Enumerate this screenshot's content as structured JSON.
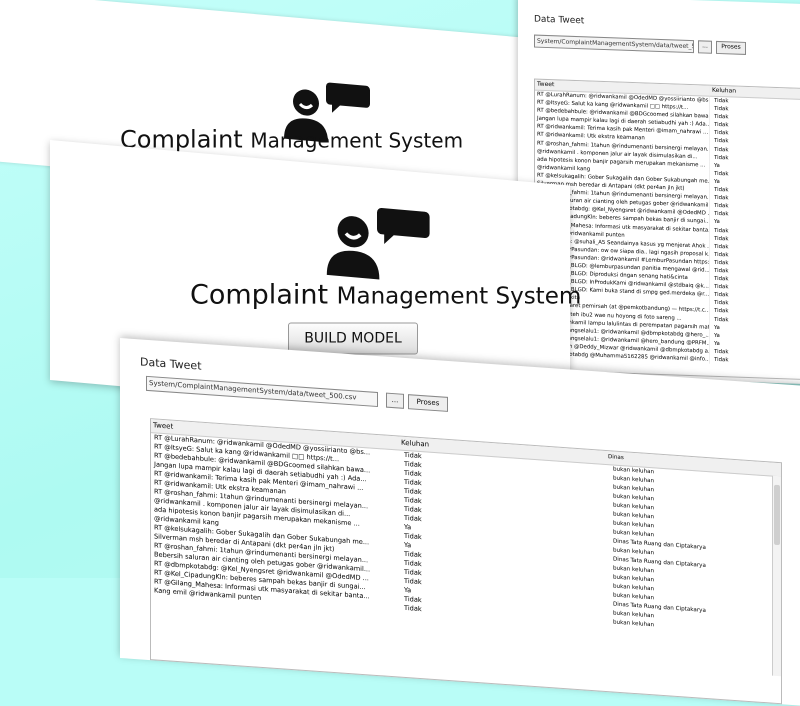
{
  "app": {
    "title_part1": "Complaint ",
    "title_part2": "Management System"
  },
  "build_button": "BUILD MODEL",
  "data_tweet": {
    "label": "Data Tweet",
    "path": "System/ComplaintManagementSystem/data/tweet_500.csv",
    "browse": "...",
    "proses": "Proses",
    "columns": [
      "Tweet",
      "Keluhan",
      "Dinas"
    ]
  },
  "rows_right": [
    [
      "RT @LurahRanum: @ridwankamil @OdedMD @yossiirianto @bs...",
      "Tidak"
    ],
    [
      "RT @ItsyeG: Salut ka kang @ridwankamil □□ https://t...",
      "Tidak"
    ],
    [
      "RT @bedebahbule: @ridwankamil @BDGcoomed silahkan bawa...",
      "Tidak"
    ],
    [
      "Jangan lupa mampir kalau lagi di daerah setiabudhi yah :) Ada...",
      "Tidak"
    ],
    [
      "RT @ridwankamil: Terima kasih pak Menteri @imam_nahrawi ...",
      "Tidak"
    ],
    [
      "RT @ridwankamil: Utk ekstra keamanan",
      "Tidak"
    ],
    [
      "RT @roshan_fahmi: 1tahun @rindumenanti bersinergi melayan...",
      "Tidak"
    ],
    [
      "@ridwankamil .      komponen jalur air layak disimulasikan di...",
      "Tidak"
    ],
    [
      "ada hipotesis konon banjir pagarsih merupakan mekanisme ...",
      "Ya"
    ],
    [
      "@ridwankamil kang",
      "Tidak"
    ],
    [
      "RT @kelsukagalih: Gober Sukagalih dan Gober Sukabungah me...",
      "Ya"
    ],
    [
      "Silverman msh beredar di Antapani (dkt per4an jln jkt)",
      "Tidak"
    ],
    [
      "RT @roshan_fahmi: 1tahun @rindumenanti bersinergi melayan...",
      "Tidak"
    ],
    [
      "Bebersih saluran air cianting oleh petugas gober @ridwankamil...",
      "Tidak"
    ],
    [
      "RT @dbmpkotabdg: @Kel_Nyengsret @ridwankamil @OdedMD ...",
      "Tidak"
    ],
    [
      "RT @Kel_CipadungKln: beberes sampah bekas banjir di sungai...",
      "Ya"
    ],
    [
      "RT @Gilang_Mahesa: Informasi utk masyarakat di sekitar banta...",
      "Tidak"
    ],
    [
      "Kang emil @ridwankamil punten",
      "Tidak"
    ],
    [
      "RT @IsoWira: @suhali_A5 Seandainya kasus yg menjerat Ahok ...",
      "Tidak"
    ],
    [
      "RT @LemburPasundan: ow ow siapa dia.. lagi ngasih proposal k...",
      "Tidak"
    ],
    [
      "RT @LemburPasundan: @ridwankamil #LemburPasundan https://...",
      "Tidak"
    ],
    [
      "RT @TARKA_BLGD: @lemburpasundan panitia mengawal @rid...",
      "Tidak"
    ],
    [
      "RT @TARKA_BLGD: Diproduksi dngan senang hati&cinta",
      "Tidak"
    ],
    [
      "RT @TARKA_BLGD: InProdukKami @ridwankamil @stdbaiq @k...",
      "Tidak"
    ],
    [
      "RT @TARKA_BLGD: Kami buka stand di smpg ged.merdeka @r...",
      "Tidak"
    ],
    [
      "Lingkungan kita",
      "Tidak"
    ],
    [
      "Biasa we ngaret pemirsah (at @pemkotbandung) — https://t.c...",
      "Tidak"
    ],
    [
      "aduh sugan teh ibu2 wae nu hoyong di foto sareng ...",
      "Tidak"
    ],
    [
      "Pak @ridwankamil lampu lalulintas di perempatan pagarsih mati",
      "Ya"
    ],
    [
      "RT @Ucupyangselalu1: @ridwankamil @dbmpkotabdg @hero_...",
      "Ya"
    ],
    [
      "RT @Ucupyangselalu1: @ridwankamil @hero_bandung @PRFM...",
      "Ya"
    ],
    [
      "@aheryawan @Deddy_Mizwar @ridwankamil @dbmpkotabdg a...",
      "Tidak"
    ],
    [
      "RT @dbmpkotabdg @Muhamma5162285 @ridwankamil @info...",
      "Tidak"
    ]
  ],
  "rows_front": [
    [
      "RT @LurahRanum: @ridwankamil @OdedMD @yossiirianto @bs...",
      "Tidak",
      "bukan keluhan"
    ],
    [
      "RT @ItsyeG: Salut ka kang @ridwankamil □□ https://t...",
      "Tidak",
      "bukan keluhan"
    ],
    [
      "RT @bedebahbule: @ridwankamil @BDGcoomed silahkan bawa...",
      "Tidak",
      "bukan keluhan"
    ],
    [
      "Jangan lupa mampir kalau lagi di daerah setiabudhi yah :) Ada...",
      "Tidak",
      "bukan keluhan"
    ],
    [
      "RT @ridwankamil: Terima kasih pak Menteri @imam_nahrawi ...",
      "Tidak",
      "bukan keluhan"
    ],
    [
      "RT @ridwankamil: Utk ekstra keamanan",
      "Tidak",
      "bukan keluhan"
    ],
    [
      "RT @roshan_fahmi: 1tahun @rindumenanti bersinergi melayan...",
      "Tidak",
      "bukan keluhan"
    ],
    [
      "@ridwankamil .      komponen jalur air layak disimulasikan di...",
      "Tidak",
      "bukan keluhan"
    ],
    [
      "ada hipotesis konon banjir pagarsih merupakan mekanisme ...",
      "Ya",
      "Dinas Tata Ruang dan Ciptakarya"
    ],
    [
      "@ridwankamil kang",
      "Tidak",
      "bukan keluhan"
    ],
    [
      "RT @kelsukagalih: Gober Sukagalih dan Gober Sukabungah me...",
      "Ya",
      "Dinas Tata Ruang dan Ciptakarya"
    ],
    [
      "Silverman msh beredar di Antapani (dkt per4an jln jkt)",
      "Tidak",
      "bukan keluhan"
    ],
    [
      "RT @roshan_fahmi: 1tahun @rindumenanti bersinergi melayan...",
      "Tidak",
      "bukan keluhan"
    ],
    [
      "Bebersih saluran air cianting oleh petugas gober @ridwankamil...",
      "Tidak",
      "bukan keluhan"
    ],
    [
      "RT @dbmpkotabdg: @Kel_Nyengsret @ridwankamil @OdedMD ...",
      "Tidak",
      "bukan keluhan"
    ],
    [
      "RT @Kel_CipadungKln: beberes sampah bekas banjir di sungai...",
      "Ya",
      "Dinas Tata Ruang dan Ciptakarya"
    ],
    [
      "RT @Gilang_Mahesa: Informasi utk masyarakat di sekitar banta...",
      "Tidak",
      "bukan keluhan"
    ],
    [
      "Kang emil @ridwankamil punten",
      "Tidak",
      "bukan keluhan"
    ]
  ]
}
